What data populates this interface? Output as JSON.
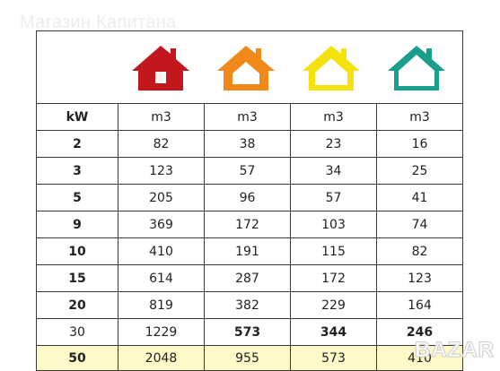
{
  "watermark": "Магазин Капитана",
  "corner_logo": "BAZAR",
  "houses": [
    {
      "icon": "house-icon",
      "color": "#c3171e"
    },
    {
      "icon": "house-icon",
      "color": "#f0881a"
    },
    {
      "icon": "house-icon",
      "color": "#f5e20c"
    },
    {
      "icon": "house-icon",
      "color": "#1b9f8d"
    }
  ],
  "headers": [
    "kW",
    "m3",
    "m3",
    "m3",
    "m3"
  ],
  "rows": [
    [
      "2",
      "82",
      "38",
      "23",
      "16"
    ],
    [
      "3",
      "123",
      "57",
      "34",
      "25"
    ],
    [
      "5",
      "205",
      "96",
      "57",
      "41"
    ],
    [
      "9",
      "369",
      "172",
      "103",
      "74"
    ],
    [
      "10",
      "410",
      "191",
      "115",
      "82"
    ],
    [
      "15",
      "614",
      "287",
      "172",
      "123"
    ],
    [
      "20",
      "819",
      "382",
      "229",
      "164"
    ],
    [
      "30",
      "1229",
      "573",
      "344",
      "246"
    ],
    [
      "50",
      "2048",
      "955",
      "573",
      "410"
    ]
  ]
}
